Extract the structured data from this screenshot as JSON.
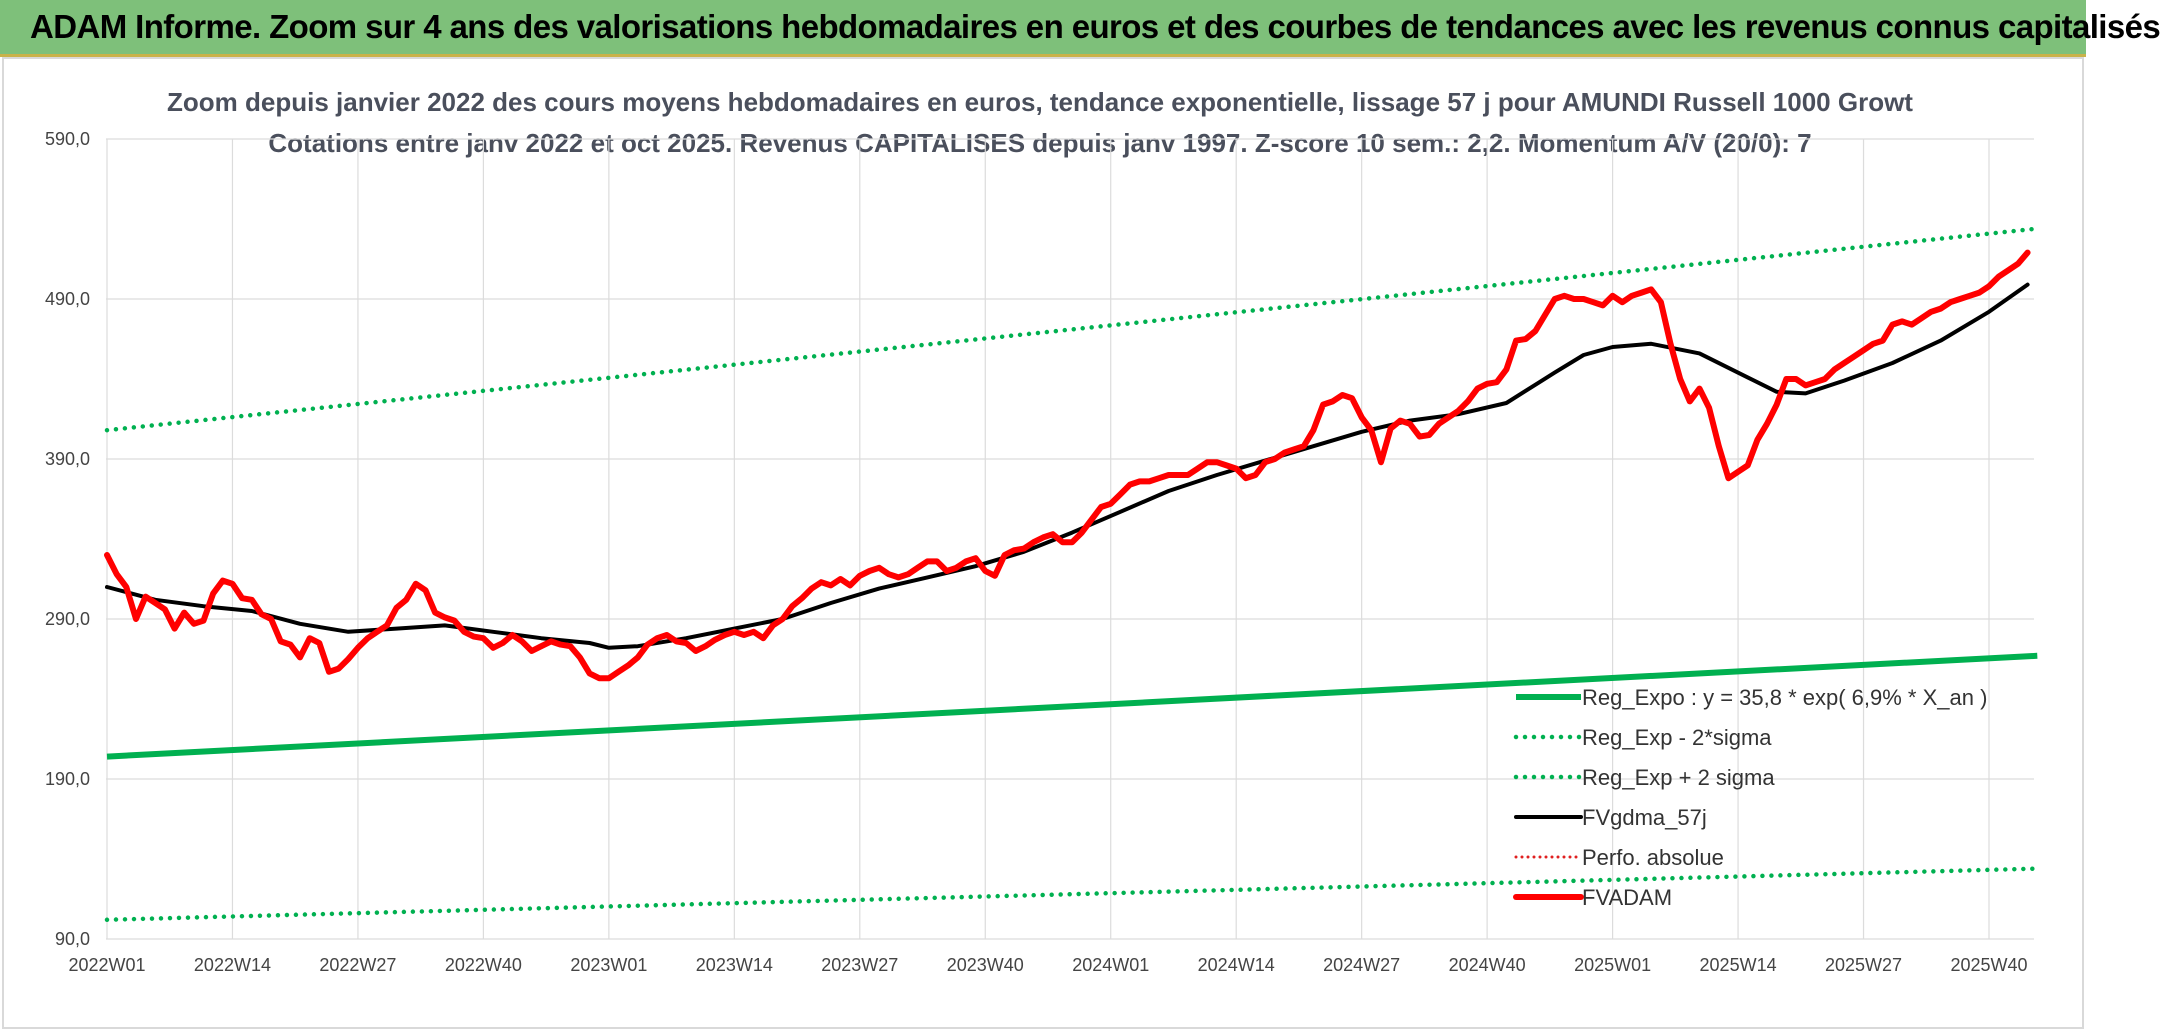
{
  "banner": {
    "title": "ADAM Informe. Zoom sur 4 ans des valorisations hebdomadaires en euros et des courbes de tendances avec les revenus connus capitalisés"
  },
  "chart_data": {
    "type": "line",
    "title": "Zoom depuis janvier 2022 des cours moyens hebdomadaires en euros, tendance exponentielle, lissage 57 j pour AMUNDI Russell 1000 Growt",
    "subtitle": "Cotations entre janv 2022 et oct 2025. Revenus CAPITALISES depuis janv 1997. Z-score 10 sem.: 2,2. Momentum A/V (20/0): 7",
    "x_tick_labels": [
      "2022W01",
      "2022W14",
      "2022W27",
      "2022W40",
      "2023W01",
      "2023W14",
      "2023W27",
      "2023W40",
      "2024W01",
      "2024W14",
      "2024W27",
      "2024W40",
      "2025W01",
      "2025W14",
      "2025W27",
      "2025W40"
    ],
    "x_tick_weeks": [
      0,
      13,
      26,
      39,
      52,
      65,
      78,
      91,
      104,
      117,
      130,
      143,
      156,
      169,
      182,
      195
    ],
    "xlim": [
      0,
      200
    ],
    "ylim": [
      90,
      590
    ],
    "y_ticks": [
      90,
      190,
      290,
      390,
      490,
      590
    ],
    "y_tick_labels": [
      "90,0",
      "190,0",
      "290,0",
      "390,0",
      "490,0",
      "590,0"
    ],
    "grid": true,
    "legend_position": "bottom-right",
    "colors": {
      "reg_expo": "#00b050",
      "reg_minus": "#00b050",
      "reg_plus": "#00b050",
      "fvgdma": "#000000",
      "perfo": "#e02020",
      "fvadam": "#ff0000"
    },
    "series": [
      {
        "key": "reg_expo",
        "name": "Reg_Expo : y = 35,8 * exp( 6,9% *  X_an )",
        "style": "solid-thick",
        "x": [
          0,
          200
        ],
        "values": [
          204,
          267
        ]
      },
      {
        "key": "reg_minus",
        "name": "Reg_Exp - 2*sigma",
        "style": "dotted",
        "x": [
          0,
          200
        ],
        "values": [
          102,
          134
        ]
      },
      {
        "key": "reg_plus",
        "name": "Reg_Exp + 2 sigma",
        "style": "dotted",
        "x": [
          0,
          200
        ],
        "values": [
          408,
          534
        ]
      },
      {
        "key": "fvgdma",
        "name": "FVgdma_57j",
        "style": "solid",
        "x": [
          0,
          5,
          10,
          15,
          20,
          25,
          30,
          35,
          40,
          45,
          50,
          52,
          55,
          60,
          65,
          70,
          75,
          80,
          85,
          90,
          95,
          100,
          105,
          110,
          115,
          120,
          125,
          130,
          135,
          140,
          145,
          150,
          153,
          156,
          160,
          165,
          170,
          173,
          176,
          180,
          185,
          190,
          195,
          199
        ],
        "values": [
          310,
          302,
          298,
          295,
          287,
          282,
          284,
          286,
          282,
          278,
          275,
          272,
          273,
          278,
          284,
          290,
          300,
          309,
          316,
          323,
          332,
          344,
          357,
          370,
          380,
          389,
          398,
          407,
          414,
          418,
          425,
          444,
          455,
          460,
          462,
          456,
          441,
          432,
          431,
          439,
          450,
          464,
          482,
          499
        ]
      },
      {
        "key": "perfo",
        "name": "Perfo. absolue",
        "style": "dotted-red",
        "x": [],
        "values": []
      },
      {
        "key": "fvadam",
        "name": "FVADAM",
        "style": "solid-thick",
        "x": [
          0,
          1,
          2,
          3,
          4,
          5,
          6,
          7,
          8,
          9,
          10,
          11,
          12,
          13,
          14,
          15,
          16,
          17,
          18,
          19,
          20,
          21,
          22,
          23,
          24,
          25,
          26,
          27,
          28,
          29,
          30,
          31,
          32,
          33,
          34,
          35,
          36,
          37,
          38,
          39,
          40,
          41,
          42,
          43,
          44,
          45,
          46,
          47,
          48,
          49,
          50,
          51,
          52,
          53,
          54,
          55,
          56,
          57,
          58,
          59,
          60,
          61,
          62,
          63,
          64,
          65,
          66,
          67,
          68,
          69,
          70,
          71,
          72,
          73,
          74,
          75,
          76,
          77,
          78,
          79,
          80,
          81,
          82,
          83,
          84,
          85,
          86,
          87,
          88,
          89,
          90,
          91,
          92,
          93,
          94,
          95,
          96,
          97,
          98,
          99,
          100,
          101,
          102,
          103,
          104,
          105,
          106,
          107,
          108,
          109,
          110,
          111,
          112,
          113,
          114,
          115,
          116,
          117,
          118,
          119,
          120,
          121,
          122,
          123,
          124,
          125,
          126,
          127,
          128,
          129,
          130,
          131,
          132,
          133,
          134,
          135,
          136,
          137,
          138,
          139,
          140,
          141,
          142,
          143,
          144,
          145,
          146,
          147,
          148,
          149,
          150,
          151,
          152,
          153,
          154,
          155,
          156,
          157,
          158,
          159,
          160,
          161,
          162,
          163,
          164,
          165,
          166,
          167,
          168,
          169,
          170,
          171,
          172,
          173,
          174,
          175,
          176,
          177,
          178,
          179,
          180,
          181,
          182,
          183,
          184,
          185,
          186,
          187,
          188,
          189,
          190,
          191,
          192,
          193,
          194,
          195,
          196,
          197,
          198,
          199
        ],
        "values": [
          330,
          318,
          310,
          290,
          304,
          300,
          296,
          284,
          294,
          287,
          289,
          306,
          314,
          312,
          303,
          302,
          293,
          290,
          276,
          274,
          266,
          278,
          275,
          257,
          259,
          265,
          272,
          278,
          282,
          286,
          297,
          302,
          312,
          308,
          294,
          291,
          289,
          282,
          279,
          278,
          272,
          275,
          280,
          276,
          270,
          273,
          276,
          274,
          273,
          266,
          256,
          253,
          253,
          257,
          261,
          266,
          274,
          278,
          280,
          276,
          275,
          270,
          273,
          277,
          280,
          282,
          280,
          282,
          278,
          286,
          290,
          298,
          303,
          309,
          313,
          311,
          315,
          311,
          317,
          320,
          322,
          318,
          316,
          318,
          322,
          326,
          326,
          320,
          322,
          326,
          328,
          320,
          317,
          330,
          333,
          334,
          338,
          341,
          343,
          338,
          338,
          344,
          352,
          360,
          362,
          368,
          374,
          376,
          376,
          378,
          380,
          380,
          380,
          384,
          388,
          388,
          386,
          384,
          378,
          380,
          388,
          390,
          394,
          396,
          398,
          408,
          424,
          426,
          430,
          428,
          416,
          408,
          388,
          409,
          414,
          412,
          404,
          405,
          412,
          416,
          420,
          426,
          434,
          437,
          438,
          446,
          464,
          465,
          470,
          480,
          490,
          492,
          490,
          490,
          488,
          486,
          492,
          488,
          492,
          494,
          496,
          488,
          462,
          440,
          426,
          434,
          422,
          398,
          378,
          382,
          386,
          402,
          412,
          424,
          440,
          440,
          436,
          438,
          440,
          446,
          450,
          454,
          458,
          462,
          464,
          474,
          476,
          474,
          478,
          482,
          484,
          488,
          490,
          492,
          494,
          498,
          504,
          508,
          512,
          519
        ]
      }
    ]
  }
}
